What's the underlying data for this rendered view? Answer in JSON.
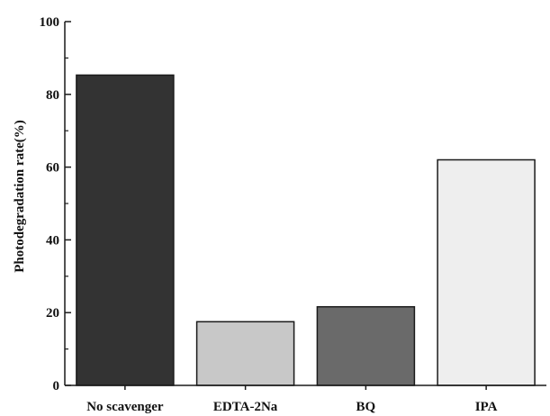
{
  "chart_data": {
    "type": "bar",
    "title": "",
    "xlabel": "",
    "ylabel": "Photodegradation rate(%)",
    "categories": [
      "No scavenger",
      "EDTA-2Na",
      "BQ",
      "IPA"
    ],
    "values": [
      85.3,
      17.5,
      21.6,
      62.0
    ],
    "bar_colors": [
      "#333333",
      "#c8c8c8",
      "#6a6a6a",
      "#eeeeee"
    ],
    "ylim": [
      0,
      100
    ],
    "yticks": [
      0,
      20,
      40,
      60,
      80,
      100
    ],
    "grid": false,
    "legend": "none"
  }
}
